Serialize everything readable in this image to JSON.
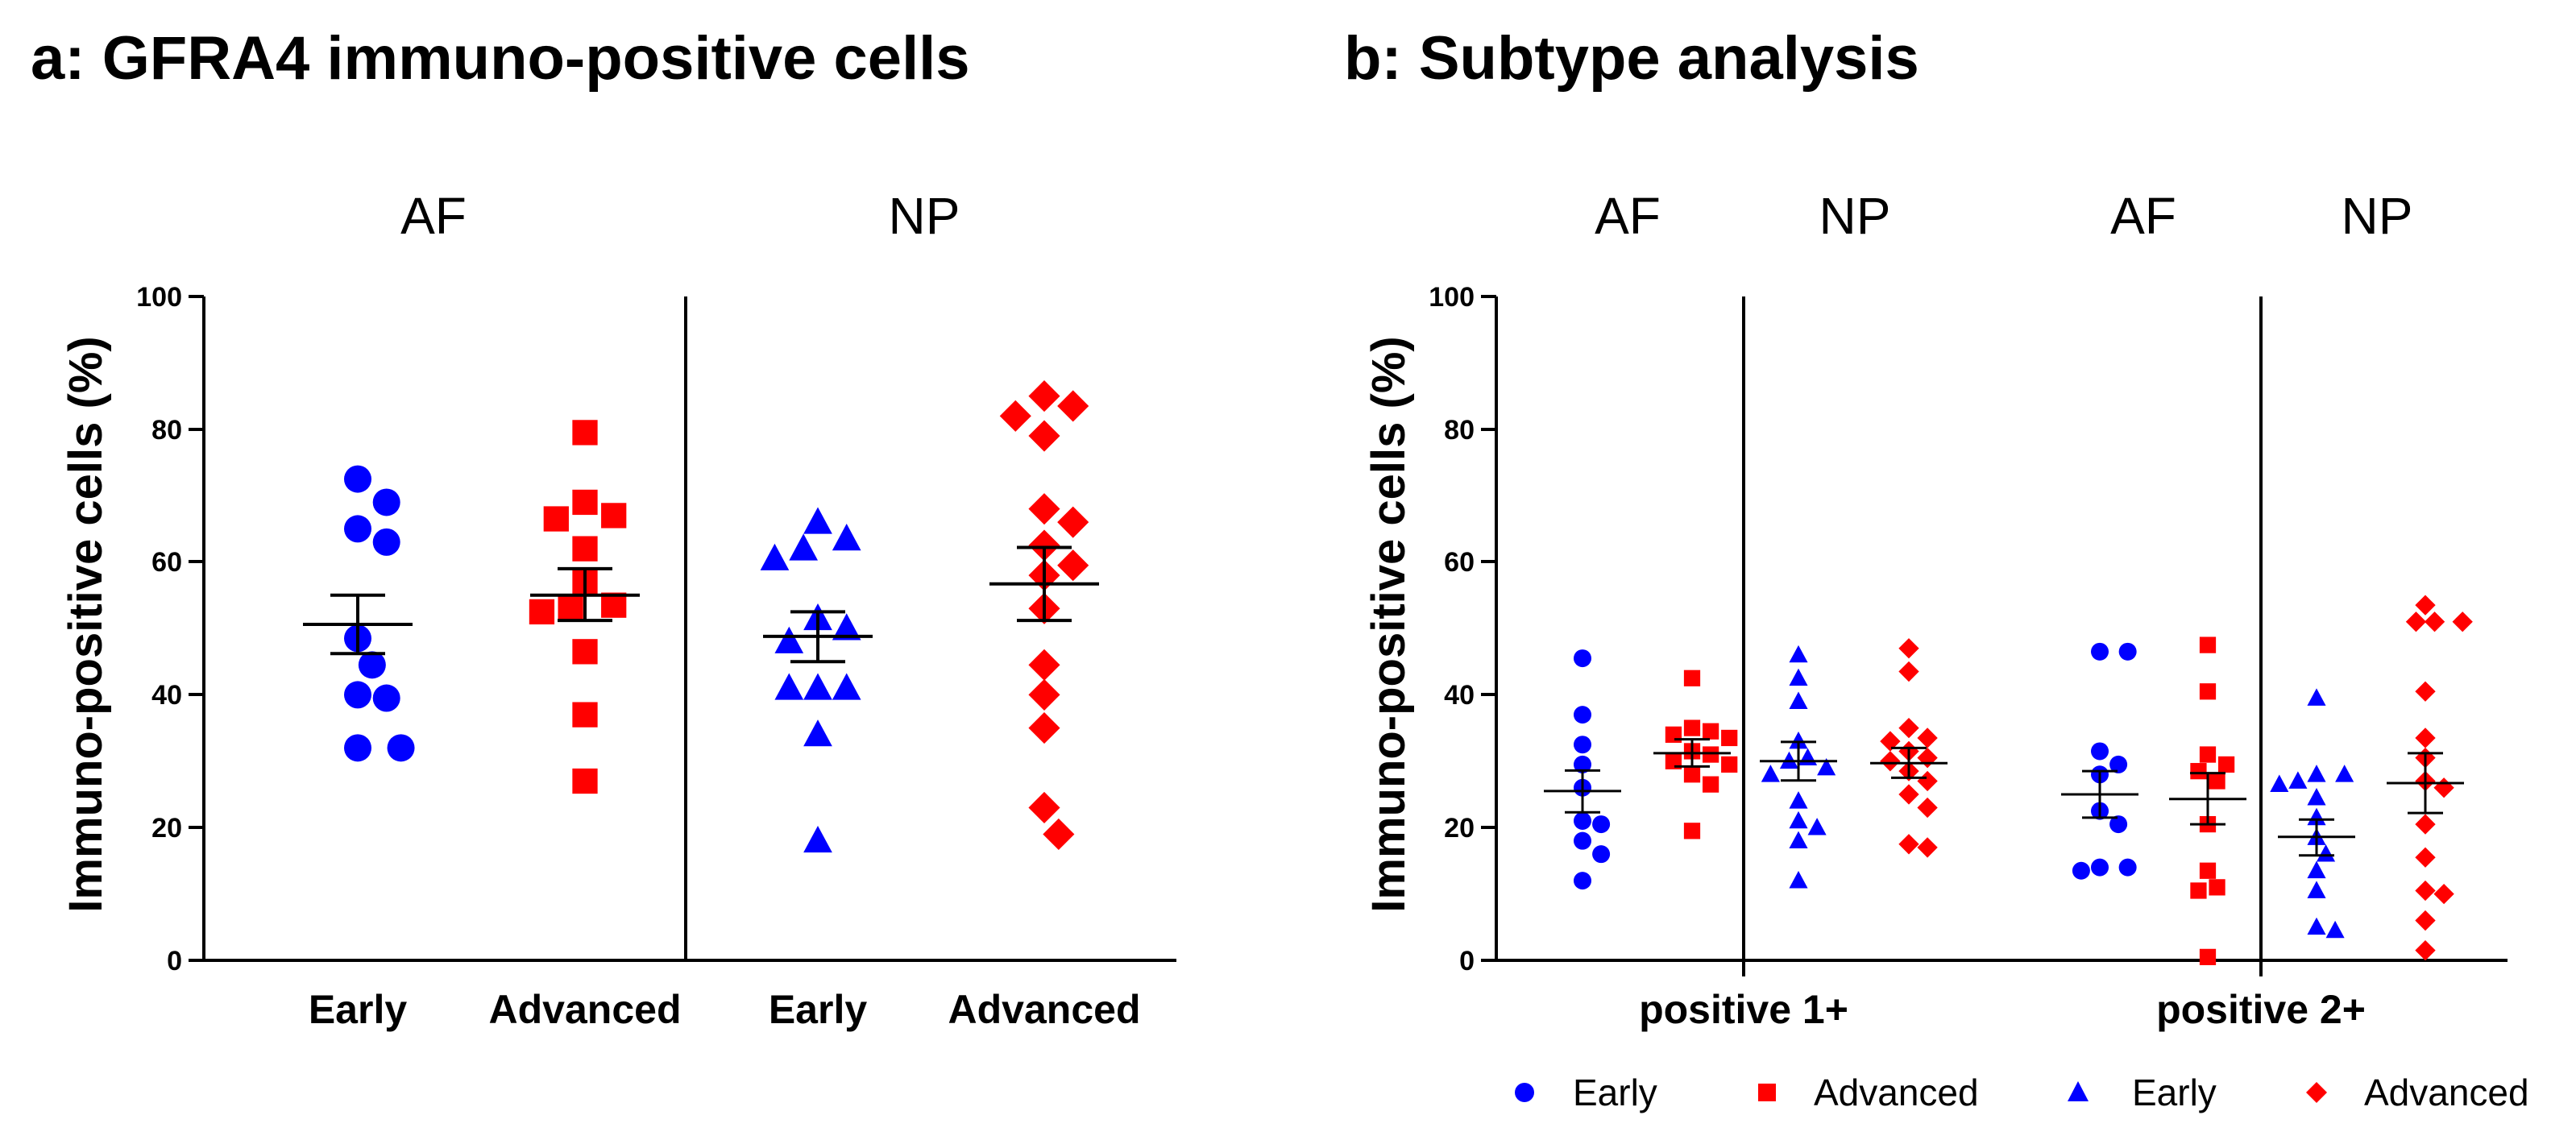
{
  "colors": {
    "blue": "#0000ff",
    "red": "#ff0000",
    "black": "#000000"
  },
  "chart_data": [
    {
      "type": "scatter",
      "title": "a: GFRA4 immuno-positive cells",
      "ylabel": "Immuno-positive cells (%)",
      "ylim": [
        0,
        100
      ],
      "yticks": [
        "0",
        "20",
        "40",
        "60",
        "80",
        "100"
      ],
      "groups": [
        "AF",
        "NP"
      ],
      "categories": [
        "Early",
        "Advanced",
        "Early",
        "Advanced"
      ],
      "series": [
        {
          "name": "AF Early",
          "group": "AF",
          "category": "Early",
          "color": "#0000ff",
          "marker": "circle",
          "values": [
            72.5,
            69,
            65,
            63,
            48.5,
            44.5,
            39.5,
            40,
            32,
            32
          ],
          "mean": 50.6,
          "sem_low": 46.2,
          "sem_high": 55.0
        },
        {
          "name": "AF Advanced",
          "group": "AF",
          "category": "Advanced",
          "color": "#ff0000",
          "marker": "square",
          "values": [
            79.5,
            69,
            67,
            66.5,
            62,
            57,
            53.5,
            53,
            52.5,
            46.5,
            37,
            27
          ],
          "mean": 55.0,
          "sem_low": 51.2,
          "sem_high": 59.0
        },
        {
          "name": "NP Early",
          "group": "NP",
          "category": "Early",
          "color": "#0000ff",
          "marker": "triangle",
          "values": [
            66,
            63.5,
            60.5,
            62,
            51.5,
            50,
            48,
            41,
            41,
            41,
            34,
            18
          ],
          "mean": 48.8,
          "sem_low": 45.0,
          "sem_high": 52.5
        },
        {
          "name": "NP Advanced",
          "group": "NP",
          "category": "Advanced",
          "color": "#ff0000",
          "marker": "diamond",
          "values": [
            85,
            83.5,
            82,
            79,
            68,
            66,
            62.5,
            59.5,
            58,
            53,
            44.5,
            40,
            35,
            23,
            19
          ],
          "mean": 56.7,
          "sem_low": 51.2,
          "sem_high": 62.2
        }
      ]
    },
    {
      "type": "scatter",
      "title": "b: Subtype analysis",
      "ylabel": "Immuno-positive cells (%)",
      "ylim": [
        0,
        100
      ],
      "yticks": [
        "0",
        "20",
        "40",
        "60",
        "80",
        "100"
      ],
      "groups": [
        "AF",
        "NP",
        "AF",
        "NP"
      ],
      "categories": [
        "positive 1+",
        "positive 2+"
      ],
      "series": [
        {
          "name": "1+ AF Early",
          "category": "positive 1+",
          "group": "AF",
          "color": "#0000ff",
          "marker": "circle",
          "values": [
            45.5,
            37,
            32.5,
            29.5,
            26,
            21,
            20.5,
            18,
            16,
            12
          ],
          "mean": 25.5,
          "sem_low": 22.3,
          "sem_high": 28.6
        },
        {
          "name": "1+ AF Advanced",
          "category": "positive 1+",
          "group": "AF",
          "color": "#ff0000",
          "marker": "square",
          "values": [
            42.5,
            35,
            34.5,
            34,
            33.5,
            31.5,
            31,
            30,
            29.5,
            28,
            26.5,
            19.5
          ],
          "mean": 31.2,
          "sem_low": 29.2,
          "sem_high": 33.3
        },
        {
          "name": "1+ NP Early",
          "category": "positive 1+",
          "group": "NP",
          "color": "#0000ff",
          "marker": "triangle",
          "values": [
            46,
            42.5,
            39,
            33,
            30.5,
            30,
            29,
            28,
            24,
            21,
            20,
            18,
            12
          ],
          "mean": 30.0,
          "sem_low": 27.1,
          "sem_high": 32.9
        },
        {
          "name": "1+ NP Advanced",
          "category": "positive 1+",
          "group": "NP",
          "color": "#ff0000",
          "marker": "diamond",
          "values": [
            47,
            43.5,
            35,
            33.5,
            33,
            31.5,
            30.5,
            30,
            28.5,
            27,
            25,
            23,
            17.5,
            17
          ],
          "mean": 29.7,
          "sem_low": 27.5,
          "sem_high": 32.0
        },
        {
          "name": "2+ AF Early",
          "category": "positive 2+",
          "group": "AF",
          "color": "#0000ff",
          "marker": "circle",
          "values": [
            46.5,
            46.5,
            31.5,
            29.5,
            28,
            22.5,
            20.5,
            14,
            14,
            13.5
          ],
          "mean": 25.0,
          "sem_low": 21.5,
          "sem_high": 28.5
        },
        {
          "name": "2+ AF Advanced",
          "category": "positive 2+",
          "group": "AF",
          "color": "#ff0000",
          "marker": "square",
          "values": [
            47.5,
            40.5,
            31,
            29.5,
            28.5,
            27,
            20.5,
            13.5,
            11,
            10.5,
            0.5
          ],
          "mean": 24.3,
          "sem_low": 20.5,
          "sem_high": 28.2
        },
        {
          "name": "2+ NP Early",
          "category": "positive 2+",
          "group": "NP",
          "color": "#0000ff",
          "marker": "triangle",
          "values": [
            39.5,
            28,
            28,
            27,
            26.5,
            24.5,
            21.5,
            18.5,
            16,
            13.5,
            10.5,
            5,
            4.5
          ],
          "mean": 18.6,
          "sem_low": 15.8,
          "sem_high": 21.2
        },
        {
          "name": "2+ NP Advanced",
          "category": "positive 2+",
          "group": "NP",
          "color": "#ff0000",
          "marker": "diamond",
          "values": [
            53.5,
            51,
            51,
            51,
            40.5,
            33.5,
            30.5,
            27,
            26,
            20.5,
            15.5,
            10.5,
            10,
            6,
            1.5
          ],
          "mean": 26.7,
          "sem_low": 22.2,
          "sem_high": 31.2
        }
      ],
      "legend": [
        {
          "label": "Early",
          "marker": "circle",
          "color": "#0000ff"
        },
        {
          "label": "Advanced",
          "marker": "square",
          "color": "#ff0000"
        },
        {
          "label": "Early",
          "marker": "triangle",
          "color": "#0000ff"
        },
        {
          "label": "Advanced",
          "marker": "diamond",
          "color": "#ff0000"
        }
      ]
    }
  ]
}
